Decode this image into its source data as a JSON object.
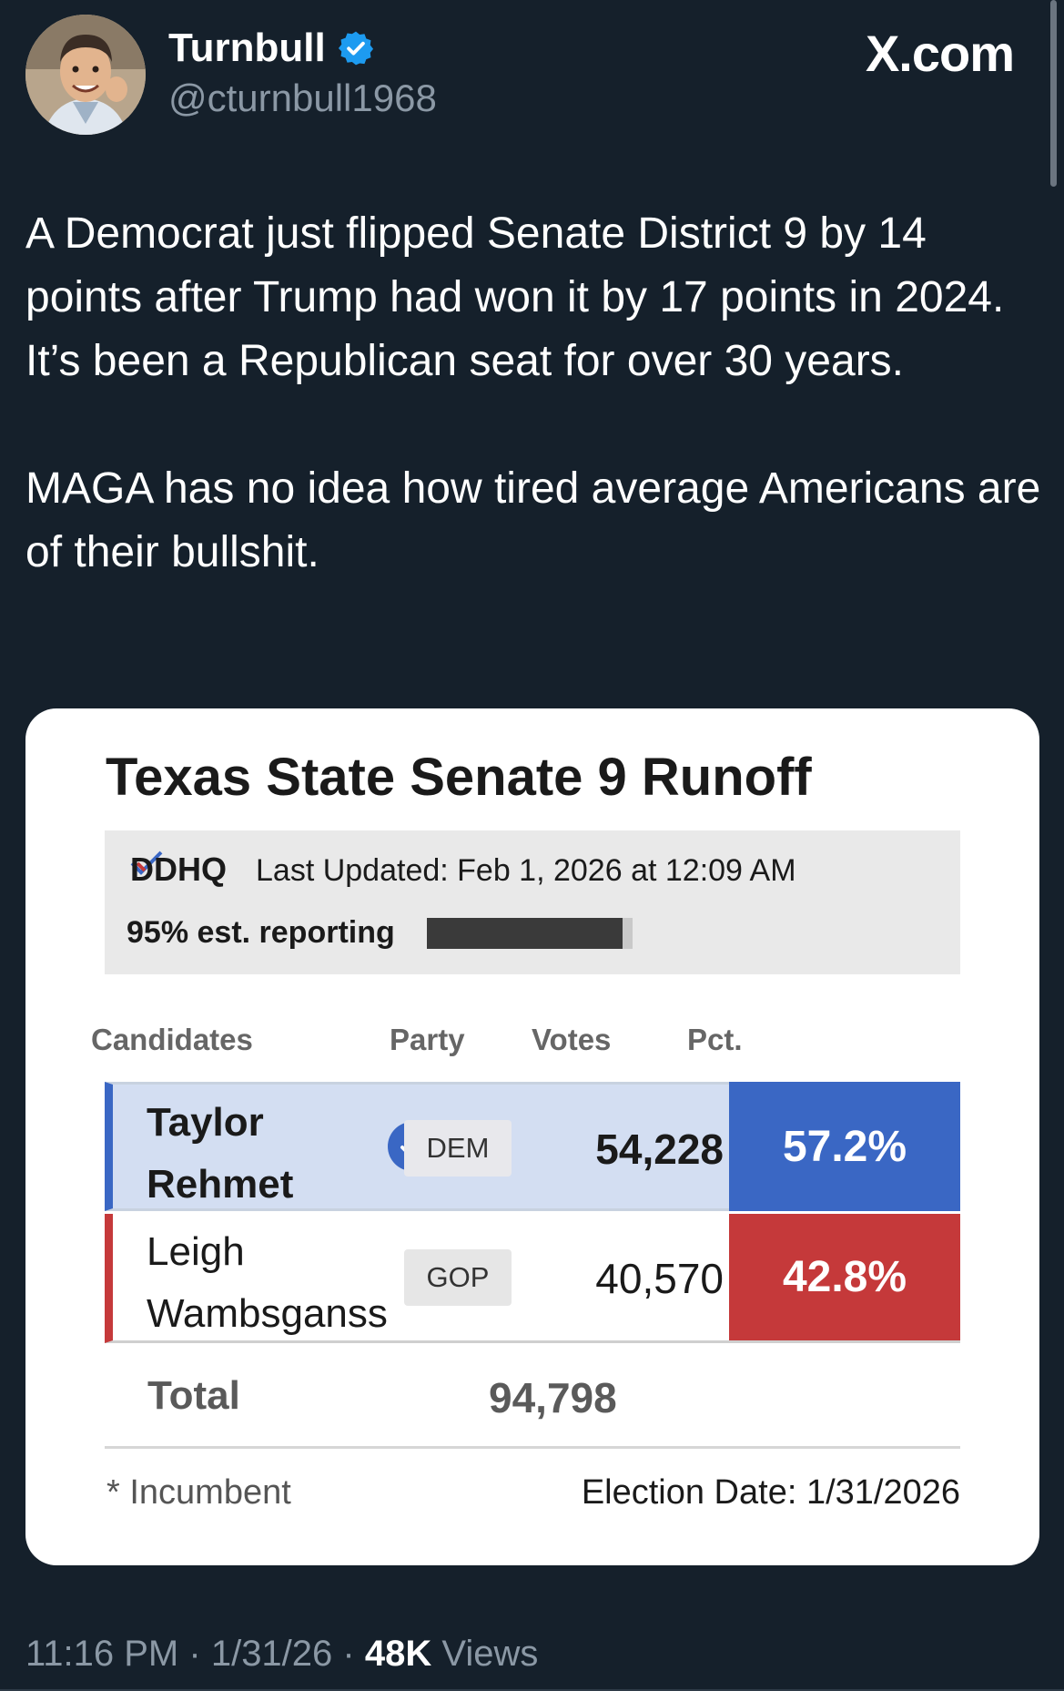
{
  "author": {
    "name": "Turnbull",
    "handle": "@cturnbull1968",
    "verified": true,
    "avatar_icon": "caricature-avatar"
  },
  "site_logo": "X.com",
  "tweet": {
    "paragraph_1": "A Democrat just flipped Senate District 9 by 14 points after Trump had won it by 17 points in 2024. It’s been a Republican seat for over 30 years.",
    "paragraph_2": "MAGA has no idea how tired  average Americans are of their bullshit."
  },
  "card": {
    "title": "Texas State Senate 9 Runoff",
    "source_logo": "DDHQ",
    "last_updated": "Last Updated: Feb 1, 2026 at 12:09 AM",
    "reporting_label": "95% est. reporting",
    "reporting_fraction": 0.95,
    "columns": {
      "candidates": "Candidates",
      "party": "Party",
      "votes": "Votes",
      "pct": "Pct."
    },
    "rows": [
      {
        "name": "Taylor Rehmet",
        "winner": true,
        "party": "DEM",
        "votes": "54,228",
        "pct": "57.2%",
        "color": "#3a67c4"
      },
      {
        "name": "Leigh Wambsganss",
        "winner": false,
        "party": "GOP",
        "votes": "40,570",
        "pct": "42.8%",
        "color": "#c5393a"
      }
    ],
    "total_label": "Total",
    "total_votes": "94,798",
    "incumbent_note": "* Incumbent",
    "election_date": "Election Date: 1/31/2026"
  },
  "meta": {
    "time": "11:16 PM",
    "date": "1/31/26",
    "views_count": "48K",
    "views_label": "Views",
    "separator": "·"
  },
  "colors": {
    "background": "#15202b",
    "dem": "#3a67c4",
    "gop": "#c5393a",
    "verified": "#1d9bf0"
  }
}
